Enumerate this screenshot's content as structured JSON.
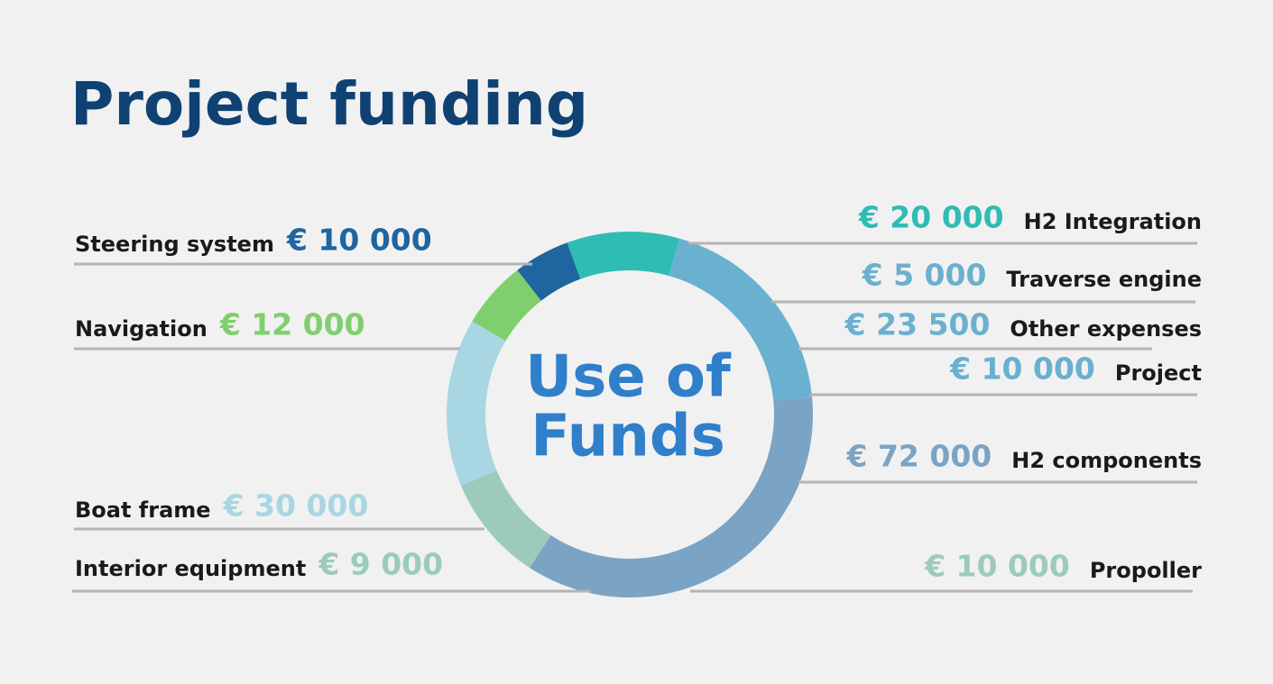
{
  "chart_data": {
    "type": "donut",
    "title": "Project funding",
    "center_lines": [
      "Use of",
      "Funds"
    ],
    "categories": [
      "H2 Integration",
      "Traverse engine",
      "Other expenses",
      "Project",
      "H2 components",
      "Propoller",
      "Interior equipment",
      "Boat frame",
      "Navigation",
      "Steering system"
    ],
    "values": [
      20000,
      5000,
      23500,
      10000,
      72000,
      10000,
      9000,
      30000,
      12000,
      10000
    ],
    "value_labels": [
      "€ 20 000",
      "€ 5 000",
      "€ 23 500",
      "€ 10 000",
      "€ 72 000",
      "€ 10 000",
      "€ 9 000",
      "€ 30 000",
      "€ 12 000",
      "€ 10 000"
    ],
    "colors": [
      "#2fbcb4",
      "#6ab0cf",
      "#6ab0cf",
      "#6ab0cf",
      "#7ba3c4",
      "#9ccbbd",
      "#9ccbbd",
      "#a8d6e2",
      "#7fcf6e",
      "#1f65a0"
    ]
  }
}
